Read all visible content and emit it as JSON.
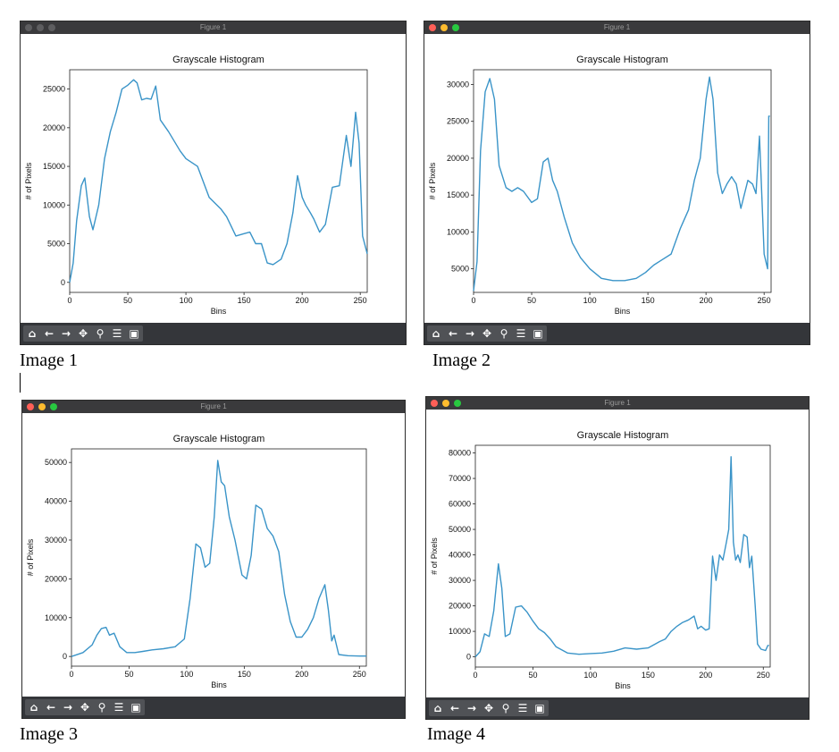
{
  "colors": {
    "line": "#3a94c8",
    "titlebar": "#3a3a3c",
    "toolbar": "#34363a",
    "dots_active": [
      "#ff5f57",
      "#febc2e",
      "#28c840"
    ],
    "dots_inactive": [
      "#5e5e60",
      "#5e5e60",
      "#5e5e60"
    ]
  },
  "toolbar_icons": [
    "home-icon",
    "back-arrow-icon",
    "forward-arrow-icon",
    "pan-icon",
    "zoom-icon",
    "configure-subplots-icon",
    "save-icon"
  ],
  "toolbar_glyphs": [
    "⌂",
    "←",
    "→",
    "✥",
    "⚲",
    "☰",
    "▣"
  ],
  "windows": [
    {
      "title": "Figure 1",
      "caption": "Image 1",
      "active": false
    },
    {
      "title": "Figure 1",
      "caption": "Image 2",
      "active": true
    },
    {
      "title": "Figure 1",
      "caption": "Image 3",
      "active": true
    },
    {
      "title": "Figure 1",
      "caption": "Image 4",
      "active": true
    }
  ],
  "chart_data": [
    {
      "type": "line",
      "title": "Grayscale Histogram",
      "xlabel": "Bins",
      "ylabel": "# of Pixels",
      "xlim": [
        0,
        256
      ],
      "ylim": [
        -1300,
        27500
      ],
      "xticks": [
        0,
        50,
        100,
        150,
        200,
        250
      ],
      "yticks": [
        0,
        5000,
        10000,
        15000,
        20000,
        25000
      ],
      "x": [
        0,
        3,
        6,
        10,
        13,
        17,
        20,
        25,
        30,
        35,
        40,
        45,
        50,
        55,
        58,
        62,
        66,
        70,
        74,
        78,
        85,
        95,
        100,
        110,
        120,
        130,
        135,
        143,
        150,
        155,
        160,
        165,
        170,
        175,
        182,
        187,
        192,
        196,
        200,
        203,
        207,
        210,
        215,
        220,
        226,
        232,
        238,
        242,
        246,
        249,
        252,
        256
      ],
      "y": [
        0,
        2500,
        8000,
        12500,
        13500,
        8500,
        6800,
        10000,
        16000,
        19500,
        22000,
        25000,
        25500,
        26200,
        25800,
        23600,
        23800,
        23700,
        25400,
        21000,
        19500,
        17000,
        16000,
        15000,
        11000,
        9500,
        8500,
        6000,
        6300,
        6500,
        5000,
        5000,
        2500,
        2300,
        3000,
        5000,
        9000,
        13800,
        11000,
        10000,
        9000,
        8200,
        6500,
        7500,
        12300,
        12500,
        19000,
        15000,
        22000,
        18000,
        6000,
        3700
      ]
    },
    {
      "type": "line",
      "title": "Grayscale Histogram",
      "xlabel": "Bins",
      "ylabel": "# of Pixels",
      "xlim": [
        0,
        256
      ],
      "ylim": [
        1800,
        32000
      ],
      "xticks": [
        0,
        50,
        100,
        150,
        200,
        250
      ],
      "yticks": [
        5000,
        10000,
        15000,
        20000,
        25000,
        30000
      ],
      "x": [
        0,
        3,
        6,
        10,
        14,
        18,
        22,
        28,
        33,
        38,
        43,
        50,
        55,
        60,
        64,
        68,
        72,
        78,
        85,
        92,
        100,
        110,
        120,
        130,
        140,
        148,
        155,
        162,
        170,
        178,
        185,
        190,
        195,
        200,
        203,
        206,
        210,
        214,
        218,
        222,
        226,
        230,
        236,
        240,
        243,
        246,
        250,
        253,
        254,
        255
      ],
      "y": [
        2000,
        6000,
        21000,
        29000,
        30800,
        28000,
        19000,
        16000,
        15500,
        16000,
        15500,
        14000,
        14500,
        19500,
        20000,
        17000,
        15500,
        12000,
        8500,
        6500,
        5000,
        3700,
        3400,
        3400,
        3700,
        4500,
        5500,
        6200,
        7000,
        10500,
        13000,
        17000,
        20000,
        28000,
        31000,
        28000,
        18000,
        15200,
        16500,
        17500,
        16500,
        13200,
        17000,
        16500,
        15200,
        23000,
        7000,
        5000,
        25700,
        25700
      ]
    },
    {
      "type": "line",
      "title": "Grayscale Histogram",
      "xlabel": "Bins",
      "ylabel": "# of Pixels",
      "xlim": [
        0,
        256
      ],
      "ylim": [
        -2500,
        53500
      ],
      "xticks": [
        0,
        50,
        100,
        150,
        200,
        250
      ],
      "yticks": [
        0,
        10000,
        20000,
        30000,
        40000,
        50000
      ],
      "x": [
        0,
        10,
        18,
        22,
        26,
        30,
        33,
        37,
        42,
        48,
        55,
        62,
        70,
        80,
        90,
        98,
        103,
        108,
        112,
        116,
        120,
        124,
        127,
        130,
        133,
        137,
        142,
        148,
        152,
        156,
        160,
        165,
        170,
        175,
        180,
        185,
        190,
        195,
        200,
        205,
        210,
        215,
        220,
        223,
        226,
        228,
        232,
        240,
        250,
        256
      ],
      "y": [
        0,
        1000,
        3000,
        5500,
        7200,
        7500,
        5500,
        6000,
        2500,
        1000,
        1000,
        1300,
        1700,
        2000,
        2500,
        4500,
        15000,
        29000,
        28000,
        23000,
        24000,
        36000,
        50500,
        45000,
        44000,
        36000,
        30000,
        21000,
        20000,
        26000,
        39000,
        38000,
        33000,
        31000,
        27000,
        16000,
        9000,
        5000,
        5000,
        7000,
        10000,
        15000,
        18500,
        12000,
        4000,
        5500,
        500,
        200,
        100,
        100
      ]
    },
    {
      "type": "line",
      "title": "Grayscale Histogram",
      "xlabel": "Bins",
      "ylabel": "# of Pixels",
      "xlim": [
        0,
        256
      ],
      "ylim": [
        -4000,
        83000
      ],
      "xticks": [
        0,
        50,
        100,
        150,
        200,
        250
      ],
      "yticks": [
        0,
        10000,
        20000,
        30000,
        40000,
        50000,
        60000,
        70000,
        80000
      ],
      "x": [
        0,
        4,
        8,
        12,
        16,
        20,
        23,
        26,
        30,
        35,
        40,
        45,
        50,
        55,
        60,
        65,
        70,
        80,
        90,
        100,
        110,
        120,
        130,
        140,
        150,
        160,
        165,
        170,
        175,
        180,
        185,
        190,
        193,
        196,
        200,
        203,
        206,
        209,
        212,
        215,
        218,
        220,
        222,
        224,
        226,
        228,
        230,
        233,
        236,
        238,
        240,
        243,
        245,
        248,
        252,
        254,
        255
      ],
      "y": [
        0,
        2000,
        9000,
        8000,
        18000,
        36500,
        27000,
        8000,
        9000,
        19500,
        20000,
        17500,
        14000,
        11000,
        9500,
        7000,
        4000,
        1500,
        1000,
        1300,
        1500,
        2200,
        3500,
        3000,
        3500,
        6000,
        7000,
        10000,
        12000,
        13500,
        14500,
        16000,
        11000,
        12000,
        10500,
        11000,
        39500,
        30000,
        40000,
        38000,
        45000,
        50000,
        78500,
        45000,
        38000,
        40000,
        37000,
        48000,
        47000,
        35000,
        39500,
        20000,
        5000,
        3000,
        2500,
        4500,
        4500
      ]
    }
  ]
}
